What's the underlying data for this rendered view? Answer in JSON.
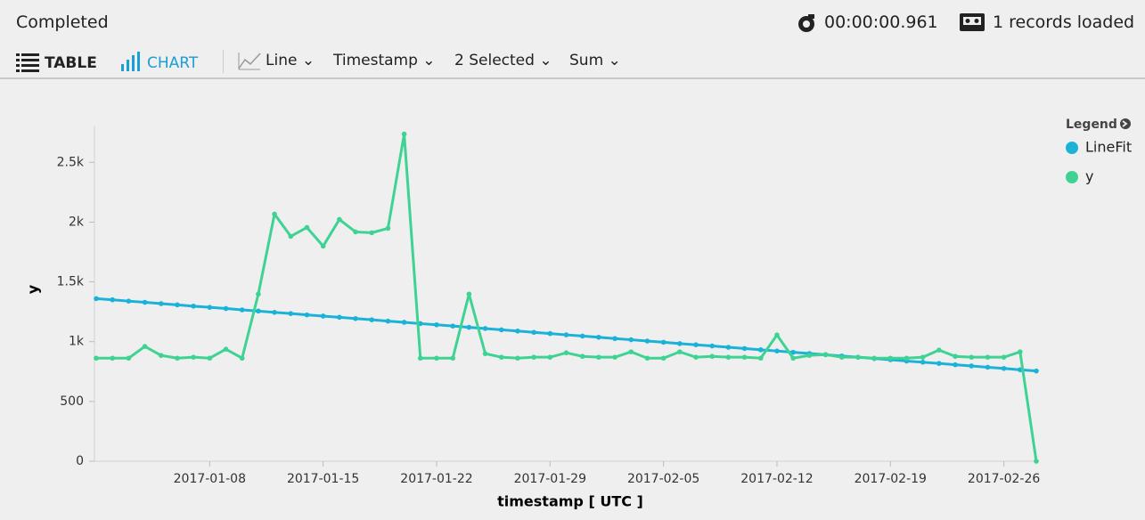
{
  "status": "Completed",
  "elapsed": "00:00:00.961",
  "records": "1 records loaded",
  "toolbar": {
    "table": "TABLE",
    "chart": "CHART",
    "chart_type": "Line",
    "x_column": "Timestamp",
    "y_columns": "2 Selected",
    "aggregation": "Sum"
  },
  "chart_data": {
    "type": "line",
    "legend_title": "Legend",
    "legend_position": "right",
    "xlabel": "timestamp [ UTC ]",
    "ylabel": "y",
    "x": [
      "2017-01-01",
      "2017-01-02",
      "2017-01-03",
      "2017-01-04",
      "2017-01-05",
      "2017-01-06",
      "2017-01-07",
      "2017-01-08",
      "2017-01-09",
      "2017-01-10",
      "2017-01-11",
      "2017-01-12",
      "2017-01-13",
      "2017-01-14",
      "2017-01-15",
      "2017-01-16",
      "2017-01-17",
      "2017-01-18",
      "2017-01-19",
      "2017-01-20",
      "2017-01-21",
      "2017-01-22",
      "2017-01-23",
      "2017-01-24",
      "2017-01-25",
      "2017-01-26",
      "2017-01-27",
      "2017-01-28",
      "2017-01-29",
      "2017-01-30",
      "2017-01-31",
      "2017-02-01",
      "2017-02-02",
      "2017-02-03",
      "2017-02-04",
      "2017-02-05",
      "2017-02-06",
      "2017-02-07",
      "2017-02-08",
      "2017-02-09",
      "2017-02-10",
      "2017-02-11",
      "2017-02-12",
      "2017-02-13",
      "2017-02-14",
      "2017-02-15",
      "2017-02-16",
      "2017-02-17",
      "2017-02-18",
      "2017-02-19",
      "2017-02-20",
      "2017-02-21",
      "2017-02-22",
      "2017-02-23",
      "2017-02-24",
      "2017-02-25",
      "2017-02-26",
      "2017-02-27",
      "2017-02-28"
    ],
    "xlim": [
      "2017-01-01",
      "2017-02-28"
    ],
    "xticks": [
      "2017-01-08",
      "2017-01-15",
      "2017-01-22",
      "2017-01-29",
      "2017-02-05",
      "2017-02-12",
      "2017-02-19",
      "2017-02-26"
    ],
    "ylim": [
      0,
      2800
    ],
    "yticks": [
      0,
      500,
      {
        "value": 1000,
        "label": "1k"
      },
      {
        "value": 1500,
        "label": "1.5k"
      },
      {
        "value": 2000,
        "label": "2k"
      },
      {
        "value": 2500,
        "label": "2.5k"
      }
    ],
    "series": [
      {
        "name": "LineFit",
        "color": "#1bb2d8",
        "values": [
          1360,
          1350,
          1339,
          1329,
          1318,
          1308,
          1297,
          1287,
          1277,
          1266,
          1256,
          1245,
          1235,
          1224,
          1214,
          1204,
          1193,
          1183,
          1172,
          1162,
          1151,
          1141,
          1131,
          1120,
          1110,
          1099,
          1089,
          1078,
          1068,
          1057,
          1047,
          1037,
          1026,
          1016,
          1005,
          995,
          984,
          974,
          964,
          953,
          943,
          932,
          922,
          911,
          901,
          891,
          880,
          870,
          859,
          849,
          838,
          828,
          818,
          807,
          797,
          786,
          776,
          765,
          755
        ]
      },
      {
        "name": "y",
        "color": "#3ed393",
        "values": [
          862,
          862,
          862,
          960,
          885,
          862,
          870,
          862,
          937,
          862,
          1398,
          2067,
          1881,
          1955,
          1799,
          2022,
          1918,
          1911,
          1948,
          2736,
          862,
          862,
          862,
          1398,
          900,
          870,
          862,
          870,
          870,
          907,
          877,
          870,
          870,
          915,
          862,
          862,
          915,
          870,
          877,
          870,
          870,
          862,
          1056,
          862,
          885,
          892,
          870,
          870,
          862,
          862,
          862,
          870,
          930,
          877,
          870,
          870,
          870,
          915,
          0
        ]
      }
    ]
  }
}
